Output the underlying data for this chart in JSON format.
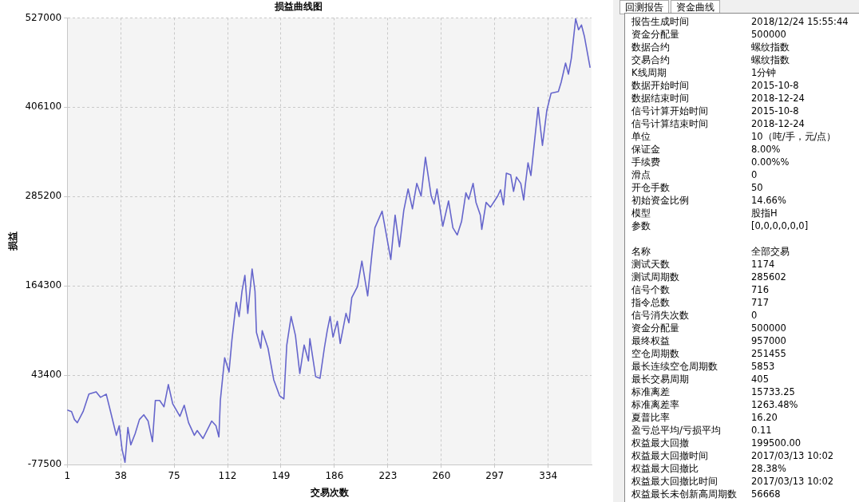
{
  "chart_data": [
    {
      "type": "line",
      "title": "损益曲线图",
      "xlabel": "交易次数",
      "ylabel": "损益",
      "xlim": [
        1,
        364
      ],
      "xticks": [
        1,
        38,
        75,
        112,
        149,
        186,
        223,
        260,
        297,
        334
      ],
      "ylim": [
        -77500,
        527000
      ],
      "yticks": [
        -77500,
        43400,
        164300,
        285200,
        406100,
        527000
      ],
      "grid": true,
      "legend": false,
      "marker": "none",
      "line_style": "solid",
      "series": [
        {
          "color": "#6666cc",
          "x": [
            1,
            4,
            6,
            8,
            12,
            16,
            21,
            24,
            28,
            31,
            35,
            37,
            39,
            41,
            43,
            45,
            48,
            51,
            54,
            57,
            60,
            62,
            65,
            68,
            71,
            74,
            79,
            82,
            85,
            89,
            91,
            95,
            101,
            104,
            106,
            107,
            110,
            113,
            115,
            118,
            120,
            122,
            124,
            126,
            129,
            131,
            132,
            135,
            136,
            140,
            144,
            148,
            151,
            153,
            156,
            159,
            162,
            165,
            168,
            169,
            173,
            176,
            179,
            181,
            183,
            185,
            188,
            190,
            194,
            196,
            198,
            202,
            205,
            209,
            212,
            214,
            219,
            225,
            228,
            231,
            234,
            237,
            240,
            243,
            246,
            249,
            253,
            255,
            257,
            261,
            265,
            268,
            271,
            274,
            277,
            279,
            282,
            284,
            287,
            288,
            291,
            294,
            299,
            301,
            303,
            305,
            308,
            310,
            312,
            315,
            317,
            318,
            320,
            322,
            327,
            330,
            333,
            336,
            341,
            343,
            346,
            348,
            350,
            353,
            355,
            357,
            359,
            363
          ],
          "values": [
            -3500,
            -5700,
            -16400,
            -20700,
            -5700,
            17900,
            21100,
            13600,
            17900,
            -5700,
            -37800,
            -25000,
            -57100,
            -74300,
            -27100,
            -50700,
            -35700,
            -16400,
            -10000,
            -18500,
            -46400,
            9300,
            9300,
            800,
            30800,
            5000,
            -12100,
            2900,
            -20700,
            -37800,
            -31400,
            -42100,
            -18500,
            -25000,
            -40000,
            9300,
            67200,
            47900,
            90800,
            142200,
            122900,
            157200,
            178700,
            127200,
            187300,
            157200,
            101500,
            80100,
            103700,
            80100,
            37200,
            15800,
            11500,
            84400,
            122900,
            97200,
            45800,
            84400,
            62900,
            92900,
            41500,
            39300,
            80100,
            103700,
            122900,
            95100,
            116500,
            86500,
            127200,
            114400,
            148600,
            163700,
            197900,
            150800,
            208700,
            243000,
            265500,
            200100,
            260100,
            217300,
            266500,
            295500,
            268700,
            303000,
            285800,
            338400,
            285800,
            275100,
            295500,
            245100,
            279400,
            243000,
            233300,
            251500,
            290300,
            281600,
            303000,
            277300,
            260100,
            240800,
            277300,
            270800,
            285800,
            294400,
            274100,
            316900,
            314800,
            292300,
            311600,
            303000,
            280500,
            298700,
            330900,
            313700,
            405900,
            354400,
            401600,
            425200,
            427300,
            440200,
            465900,
            450900,
            472300,
            525900,
            510900,
            517400,
            502400,
            459500
          ]
        }
      ]
    },
    {
      "type": "other",
      "annotations": [
        "回测报告",
        "资金曲线"
      ]
    },
    {
      "type": "other",
      "annotations": [
        "报告生成时间",
        "2018/12/24 15:55:44",
        "资金分配量",
        "500000",
        "数据合约",
        "螺纹指数",
        "交易合约",
        "螺纹指数",
        "K线周期",
        "1分钟",
        "数据开始时间",
        "2015-10-8",
        "数据结束时间",
        "2018-12-24",
        "信号计算开始时间",
        "2015-10-8",
        "信号计算结束时间",
        "2018-12-24",
        "单位",
        "10（吨/手，元/点）",
        "保证金",
        "8.00%",
        "手续费",
        "0.00%%",
        "滑点",
        "0",
        "开仓手数",
        "50",
        "初始资金比例",
        "14.66%",
        "模型",
        "股指H",
        "参数",
        "[0,0,0,0,0,0]"
      ]
    },
    {
      "type": "other",
      "annotations": [
        "名称",
        "全部交易",
        "测试天数",
        "1174",
        "测试周期数",
        "285602",
        "信号个数",
        "716",
        "指令总数",
        "717",
        "信号消失次数",
        "0",
        "资金分配量",
        "500000",
        "最终权益",
        "957000",
        "空仓周期数",
        "251455",
        "最长连续空仓周期数",
        "5853",
        "最长交易周期",
        "405",
        "标准离差",
        "15733.25",
        "标准离差率",
        "1263.48%",
        "夏普比率",
        "16.20",
        "盈亏总平均/亏损平均",
        "0.11",
        "权益最大回撤",
        "199500.00",
        "权益最大回撤时间",
        "2017/03/13 10:02",
        "权益最大回撤比",
        "28.38%",
        "权益最大回撤比时间",
        "2017/03/13 10:02",
        "权益最长未创新高周期数",
        "56668"
      ]
    }
  ]
}
